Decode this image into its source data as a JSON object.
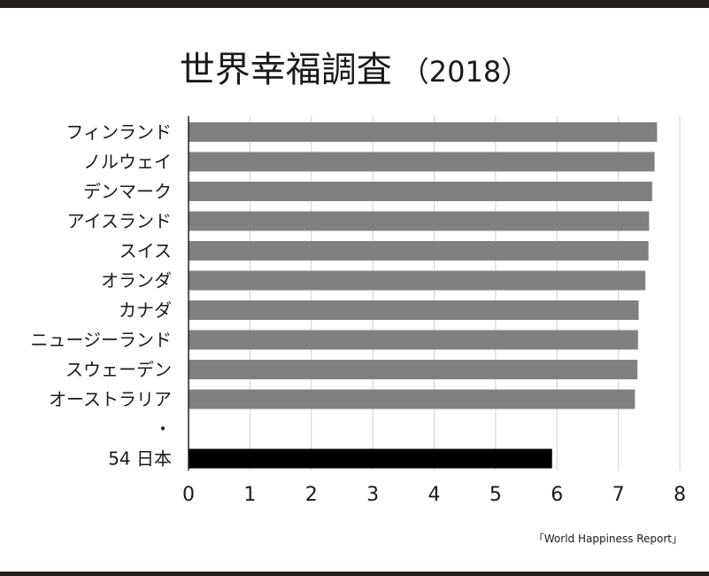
{
  "title": "世界幸福調査",
  "subtitle": "（2018）",
  "source": "「World Happiness Report」",
  "colors": {
    "bar": "#808080",
    "highlight": "#000000",
    "grid": "#cfcfcf",
    "axis": "#222222",
    "text": "#1a1a1a"
  },
  "chart_data": {
    "type": "bar",
    "orientation": "horizontal",
    "title": "世界幸福調査（2018）",
    "xlabel": "",
    "ylabel": "",
    "xlim": [
      0,
      8
    ],
    "xticks": [
      "0",
      "1",
      "2",
      "3",
      "4",
      "5",
      "6",
      "7",
      "8"
    ],
    "grid": true,
    "legend": "none",
    "categories": [
      "フィンランド",
      "ノルウェイ",
      "デンマーク",
      "アイスランド",
      "スイス",
      "オランダ",
      "カナダ",
      "ニュージーランド",
      "スウェーデン",
      "オーストラリア",
      "・",
      "54 日本"
    ],
    "values": [
      7.63,
      7.59,
      7.55,
      7.5,
      7.49,
      7.44,
      7.33,
      7.32,
      7.31,
      7.27,
      null,
      5.92
    ],
    "highlight": "54 日本"
  }
}
